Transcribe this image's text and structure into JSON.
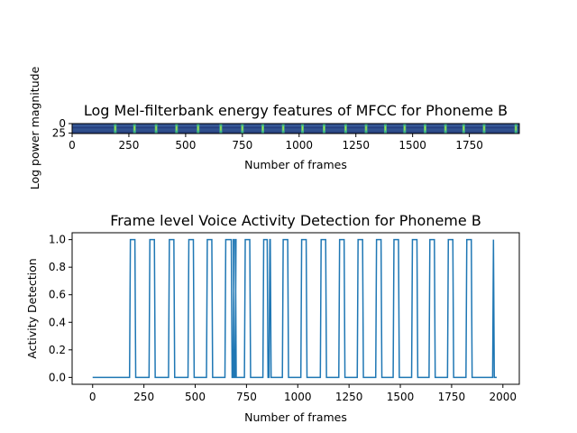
{
  "chart_data": [
    {
      "type": "heatmap",
      "title": "Log Mel-filterbank energy features of MFCC for Phoneme B",
      "xlabel": "Number of frames",
      "ylabel": "Log power magnitude",
      "xlim": [
        0,
        1970
      ],
      "ylim": [
        0,
        26
      ],
      "x_ticks": [
        0,
        250,
        500,
        750,
        1000,
        1250,
        1500,
        1750
      ],
      "y_ticks": [
        0,
        25
      ],
      "colormap": "viridis",
      "bright_frames": [
        190,
        275,
        370,
        460,
        555,
        655,
        750,
        840,
        930,
        1015,
        1110,
        1205,
        1295,
        1380,
        1465,
        1555,
        1645,
        1725,
        1815,
        1955
      ]
    },
    {
      "type": "line",
      "title": "Frame level Voice Activity Detection for Phoneme B",
      "xlabel": "Number of frames",
      "ylabel": "Activity Detection",
      "xlim": [
        -100,
        2080
      ],
      "ylim": [
        -0.05,
        1.05
      ],
      "x_ticks": [
        0,
        250,
        500,
        750,
        1000,
        1250,
        1500,
        1750,
        2000
      ],
      "y_ticks": [
        "0.0",
        "0.2",
        "0.4",
        "0.6",
        "0.8",
        "1.0"
      ],
      "line_color": "#1f77b4",
      "x_end": 1970,
      "active_segments": [
        [
          180,
          210
        ],
        [
          275,
          305
        ],
        [
          370,
          400
        ],
        [
          465,
          495
        ],
        [
          555,
          585
        ],
        [
          645,
          680
        ],
        [
          685,
          690
        ],
        [
          695,
          700
        ],
        [
          740,
          770
        ],
        [
          830,
          855
        ],
        [
          860,
          870
        ],
        [
          925,
          955
        ],
        [
          1015,
          1045
        ],
        [
          1110,
          1140
        ],
        [
          1200,
          1230
        ],
        [
          1290,
          1320
        ],
        [
          1380,
          1410
        ],
        [
          1465,
          1495
        ],
        [
          1555,
          1585
        ],
        [
          1640,
          1670
        ],
        [
          1730,
          1760
        ],
        [
          1820,
          1850
        ],
        [
          1950,
          1958
        ]
      ]
    }
  ]
}
